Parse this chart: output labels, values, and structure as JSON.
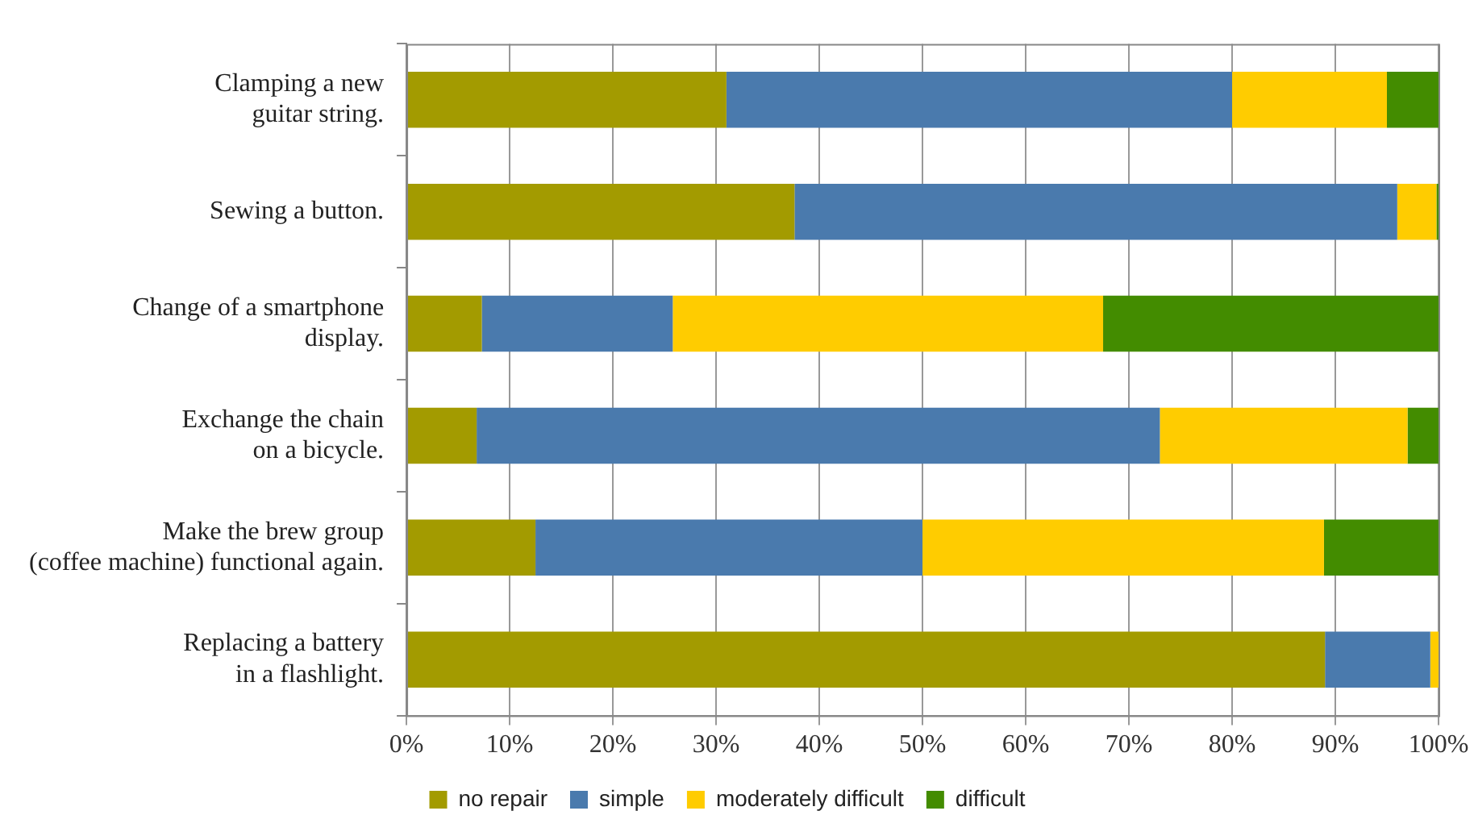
{
  "chart_data": {
    "type": "bar",
    "orientation": "horizontal",
    "stacked": true,
    "categories": [
      "Clamping a new\nguitar string.",
      "Sewing a button.",
      "Change of a smartphone\ndisplay.",
      "Exchange the chain\non a bicycle.",
      "Make the brew group\n(coffee machine) functional again.",
      "Replacing a battery\nin a flashlight."
    ],
    "series": [
      {
        "name": "no repair",
        "color": "#a39b00",
        "values": [
          31,
          37.6,
          7.3,
          6.8,
          12.5,
          89
        ]
      },
      {
        "name": "simple",
        "color": "#4a7aad",
        "values": [
          49,
          58.4,
          18.5,
          66.2,
          37.5,
          10.2
        ]
      },
      {
        "name": "moderately difficult",
        "color": "#ffcc00",
        "values": [
          15,
          3.8,
          41.7,
          24,
          38.9,
          0.8
        ]
      },
      {
        "name": "difficult",
        "color": "#438c00",
        "values": [
          5,
          0.2,
          32.5,
          3,
          11.1,
          0
        ]
      }
    ],
    "xlim": [
      0,
      100
    ],
    "xticks": [
      {
        "value": 0,
        "label": "0%"
      },
      {
        "value": 10,
        "label": "10%"
      },
      {
        "value": 20,
        "label": "20%"
      },
      {
        "value": 30,
        "label": "30%"
      },
      {
        "value": 40,
        "label": "40%"
      },
      {
        "value": 50,
        "label": "50%"
      },
      {
        "value": 60,
        "label": "60%"
      },
      {
        "value": 70,
        "label": "70%"
      },
      {
        "value": 80,
        "label": "80%"
      },
      {
        "value": 90,
        "label": "90%"
      },
      {
        "value": 100,
        "label": "100%"
      }
    ],
    "grid": "x",
    "legend": "bottom"
  }
}
